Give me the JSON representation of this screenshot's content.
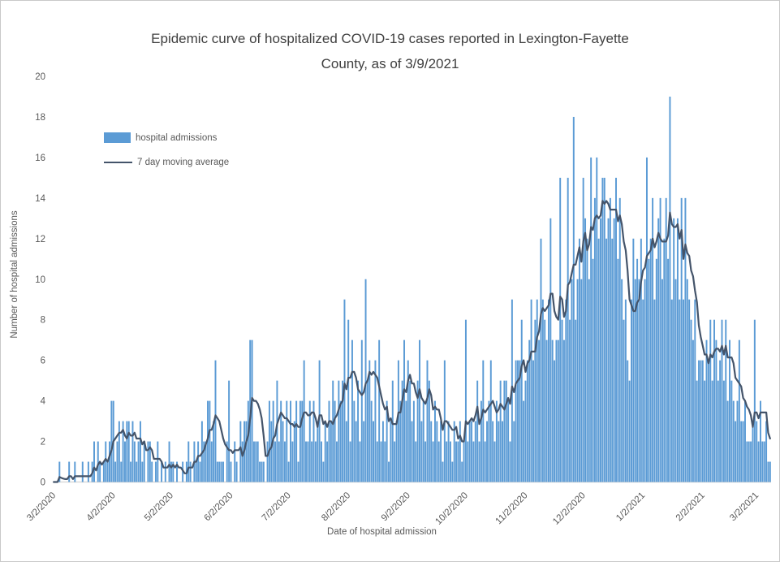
{
  "title": {
    "line1": "Epidemic curve of hospitalized COVID-19 cases reported in Lexington-Fayette",
    "line2": "County, as of 3/9/2021",
    "full": "Epidemic curve of hospitalized COVID-19 cases reported in Lexington-Fayette County, as of 3/9/2021"
  },
  "legend": {
    "bars_label": "hospital admissions",
    "line_label": "7 day moving average"
  },
  "y_axis": {
    "title": "Number of hospital admissions",
    "min": 0,
    "max": 20,
    "step": 2,
    "tick_labels": [
      "0",
      "2",
      "4",
      "6",
      "8",
      "10",
      "12",
      "14",
      "16",
      "18",
      "20"
    ]
  },
  "x_axis": {
    "title": "Date of hospital admission",
    "tick_labels": [
      "3/2/2020",
      "4/2/2020",
      "5/2/2020",
      "6/2/2020",
      "7/2/2020",
      "8/2/2020",
      "9/2/2020",
      "10/2/2020",
      "11/2/2020",
      "12/2/2020",
      "1/2/2021",
      "2/2/2021",
      "3/2/2021"
    ],
    "tick_day_indices": [
      0,
      31,
      61,
      92,
      122,
      153,
      184,
      214,
      245,
      275,
      306,
      337,
      365
    ]
  },
  "colors": {
    "bar": "#5B9BD5",
    "line": "#44546A",
    "axis": "#D9D9D9",
    "text": "#595959",
    "title_text": "#404040"
  },
  "chart_data": {
    "type": "bar",
    "title": "Epidemic curve of hospitalized COVID-19 cases reported in Lexington-Fayette County, as of 3/9/2021",
    "xlabel": "Date of hospital admission",
    "ylabel": "Number of hospital admissions",
    "ylim": [
      0,
      20
    ],
    "grid": false,
    "legend_position": "upper-left-inside",
    "start_date": "3/2/2020",
    "end_date": "3/9/2021",
    "x_tick_labels": [
      "3/2/2020",
      "4/2/2020",
      "5/2/2020",
      "6/2/2020",
      "7/2/2020",
      "8/2/2020",
      "9/2/2020",
      "10/2/2020",
      "11/2/2020",
      "12/2/2020",
      "1/2/2021",
      "2/2/2021",
      "3/2/2021"
    ],
    "series": [
      {
        "name": "hospital admissions",
        "type": "bar",
        "color": "#5B9BD5",
        "values": [
          0,
          0,
          0,
          1,
          0,
          0,
          0,
          0,
          1,
          0,
          0,
          1,
          0,
          0,
          0,
          1,
          0,
          0,
          1,
          0,
          1,
          2,
          0,
          2,
          1,
          0,
          1,
          2,
          1,
          2,
          4,
          4,
          1,
          2,
          3,
          1,
          3,
          2,
          3,
          3,
          1,
          3,
          2,
          1,
          2,
          3,
          1,
          2,
          0,
          2,
          2,
          1,
          0,
          1,
          2,
          0,
          1,
          0,
          1,
          0,
          2,
          1,
          1,
          0,
          1,
          0,
          0,
          1,
          0,
          1,
          2,
          1,
          0,
          2,
          1,
          2,
          1,
          3,
          2,
          2,
          4,
          4,
          2,
          3,
          6,
          1,
          1,
          1,
          1,
          0,
          2,
          5,
          1,
          0,
          2,
          1,
          0,
          3,
          2,
          3,
          3,
          4,
          7,
          7,
          2,
          2,
          2,
          1,
          1,
          1,
          0,
          2,
          4,
          3,
          4,
          2,
          5,
          2,
          4,
          3,
          2,
          4,
          1,
          4,
          2,
          3,
          4,
          1,
          4,
          4,
          6,
          2,
          2,
          4,
          2,
          4,
          2,
          3,
          6,
          2,
          1,
          3,
          2,
          4,
          3,
          5,
          4,
          2,
          5,
          4,
          5,
          9,
          3,
          8,
          2,
          7,
          4,
          3,
          5,
          2,
          7,
          3,
          10,
          5,
          6,
          4,
          3,
          6,
          2,
          7,
          2,
          3,
          2,
          4,
          1,
          3,
          5,
          2,
          3,
          6,
          4,
          5,
          7,
          4,
          6,
          5,
          3,
          4,
          2,
          5,
          7,
          3,
          4,
          2,
          6,
          5,
          3,
          2,
          4,
          3,
          2,
          3,
          1,
          6,
          2,
          3,
          2,
          1,
          3,
          2,
          2,
          3,
          1,
          2,
          8,
          2,
          3,
          3,
          2,
          3,
          5,
          2,
          4,
          6,
          2,
          3,
          4,
          6,
          3,
          2,
          4,
          3,
          5,
          3,
          5,
          5,
          4,
          2,
          9,
          3,
          6,
          6,
          6,
          8,
          4,
          5,
          6,
          7,
          9,
          6,
          8,
          9,
          7,
          12,
          9,
          8,
          7,
          9,
          13,
          7,
          6,
          7,
          7,
          15,
          8,
          7,
          9,
          15,
          8,
          10,
          18,
          8,
          10,
          12,
          10,
          15,
          13,
          12,
          10,
          16,
          11,
          14,
          16,
          12,
          13,
          15,
          15,
          12,
          13,
          14,
          12,
          13,
          15,
          11,
          14,
          10,
          8,
          9,
          6,
          5,
          9,
          12,
          10,
          11,
          10,
          12,
          9,
          10,
          16,
          11,
          12,
          14,
          9,
          11,
          13,
          14,
          10,
          12,
          14,
          11,
          19,
          9,
          13,
          10,
          13,
          9,
          14,
          9,
          14,
          10,
          9,
          8,
          7,
          9,
          5,
          6,
          6,
          6,
          5,
          7,
          6,
          8,
          5,
          8,
          7,
          5,
          6,
          8,
          5,
          8,
          4,
          7,
          5,
          4,
          3,
          4,
          7,
          3,
          3,
          4,
          2,
          2,
          2,
          3,
          8,
          3,
          2,
          4,
          2,
          2,
          3,
          1,
          1
        ]
      },
      {
        "name": "7 day moving average",
        "type": "line",
        "color": "#44546A",
        "derived": "trailing moving average of hospital admissions",
        "window": 7
      }
    ]
  }
}
